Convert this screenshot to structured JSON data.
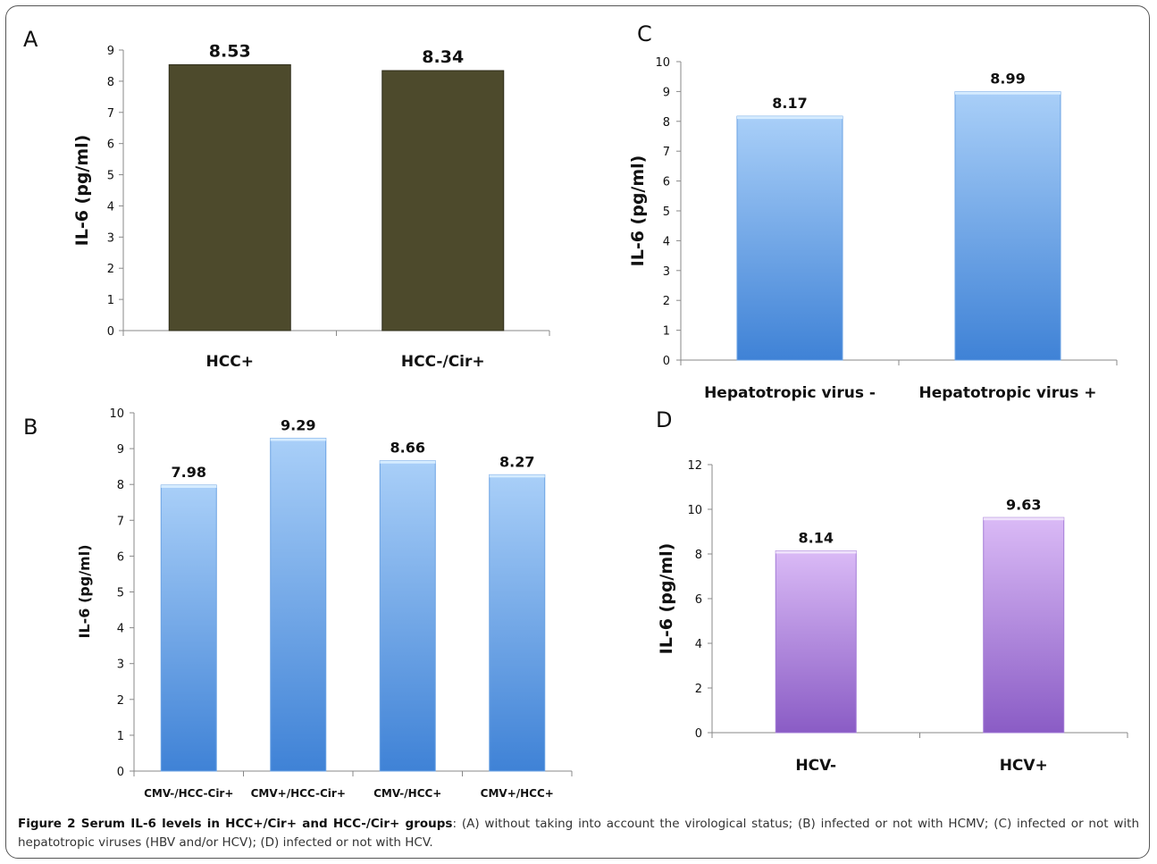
{
  "caption": {
    "bold": "Figure 2 Serum IL-6 levels in HCC+/Cir+ and HCC-/Cir+ groups",
    "rest": ": (A) without taking into account the virological status; (B) infected or not with HCMV; (C) infected or not with hepatotropic viruses (HBV and/or HCV); (D) infected or not with HCV."
  },
  "colors": {
    "olive_bar": "#4d4a2c",
    "blue_top": "#a9cff8",
    "blue_bottom": "#3f82d6",
    "purple_top": "#d8b6f5",
    "purple_bottom": "#8b5ec6"
  },
  "chart_data": [
    {
      "panel": "A",
      "type": "bar",
      "categories": [
        "HCC+",
        "HCC-/Cir+"
      ],
      "values": [
        8.53,
        8.34
      ],
      "value_labels": [
        "8.53",
        "8.34"
      ],
      "ylabel": "IL-6 (pg/ml)",
      "ylim": [
        0,
        9
      ],
      "yticks": [
        "0",
        "1",
        "2",
        "3",
        "4",
        "5",
        "6",
        "7",
        "8",
        "9"
      ],
      "fill": "olive"
    },
    {
      "panel": "B",
      "type": "bar",
      "categories": [
        "CMV-/HCC-Cir+",
        "CMV+/HCC-Cir+",
        "CMV-/HCC+",
        "CMV+/HCC+"
      ],
      "values": [
        7.98,
        9.29,
        8.66,
        8.27
      ],
      "value_labels": [
        "7.98",
        "9.29",
        "8.66",
        "8.27"
      ],
      "ylabel": "IL-6 (pg/ml)",
      "ylim": [
        0,
        10
      ],
      "yticks": [
        "0",
        "1",
        "2",
        "3",
        "4",
        "5",
        "6",
        "7",
        "8",
        "9",
        "10"
      ],
      "fill": "blue"
    },
    {
      "panel": "C",
      "type": "bar",
      "categories": [
        "Hepatotropic virus -",
        "Hepatotropic virus +"
      ],
      "values": [
        8.17,
        8.99
      ],
      "value_labels": [
        "8.17",
        "8.99"
      ],
      "ylabel": "IL-6 (pg/ml)",
      "ylim": [
        0,
        10
      ],
      "yticks": [
        "0",
        "1",
        "2",
        "3",
        "4",
        "5",
        "6",
        "7",
        "8",
        "9",
        "10"
      ],
      "fill": "blue"
    },
    {
      "panel": "D",
      "type": "bar",
      "categories": [
        "HCV-",
        "HCV+"
      ],
      "values": [
        8.14,
        9.63
      ],
      "value_labels": [
        "8.14",
        "9.63"
      ],
      "ylabel": "IL-6 (pg/ml)",
      "ylim": [
        0,
        12
      ],
      "yticks": [
        "0",
        "2",
        "4",
        "6",
        "8",
        "10",
        "12"
      ],
      "fill": "purple"
    }
  ]
}
